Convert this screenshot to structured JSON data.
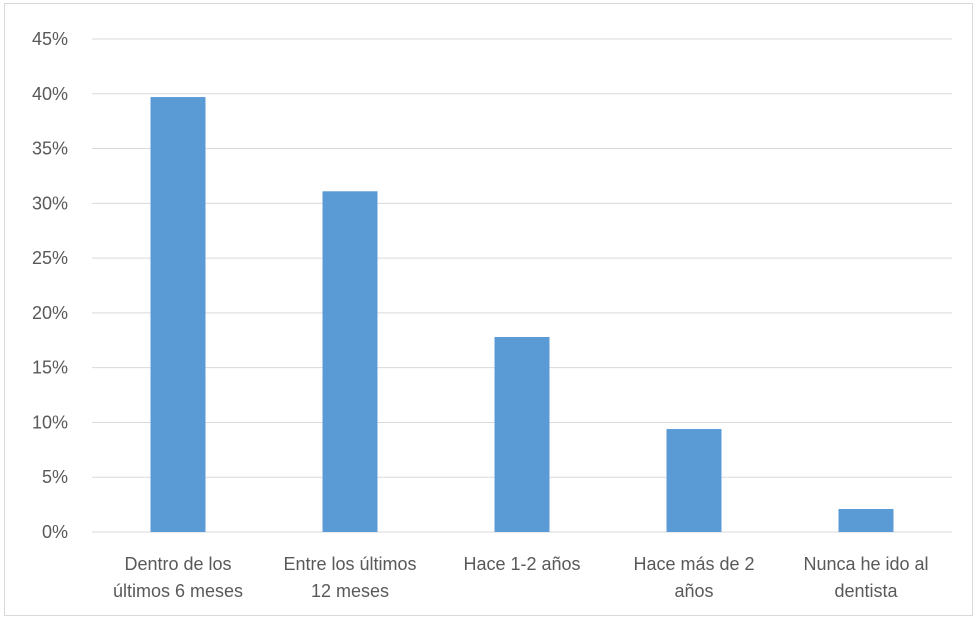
{
  "chart_data": {
    "type": "bar",
    "categories": [
      [
        "Dentro de los",
        "últimos 6 meses"
      ],
      [
        "Entre los últimos",
        "12 meses"
      ],
      [
        "Hace 1-2 años"
      ],
      [
        "Hace más de 2",
        "años"
      ],
      [
        "Nunca he ido al",
        "dentista"
      ]
    ],
    "values": [
      39.7,
      31.1,
      17.8,
      9.4,
      2.1
    ],
    "ylim": [
      0,
      45
    ],
    "ytick_step": 5,
    "ytick_labels": [
      "0%",
      "5%",
      "10%",
      "15%",
      "20%",
      "25%",
      "30%",
      "35%",
      "40%",
      "45%"
    ],
    "title": "",
    "xlabel": "",
    "ylabel": "",
    "grid": true,
    "legend": false,
    "colors": {
      "bar": "#5b9bd5",
      "grid": "#d9d9d9",
      "text": "#595959"
    }
  }
}
